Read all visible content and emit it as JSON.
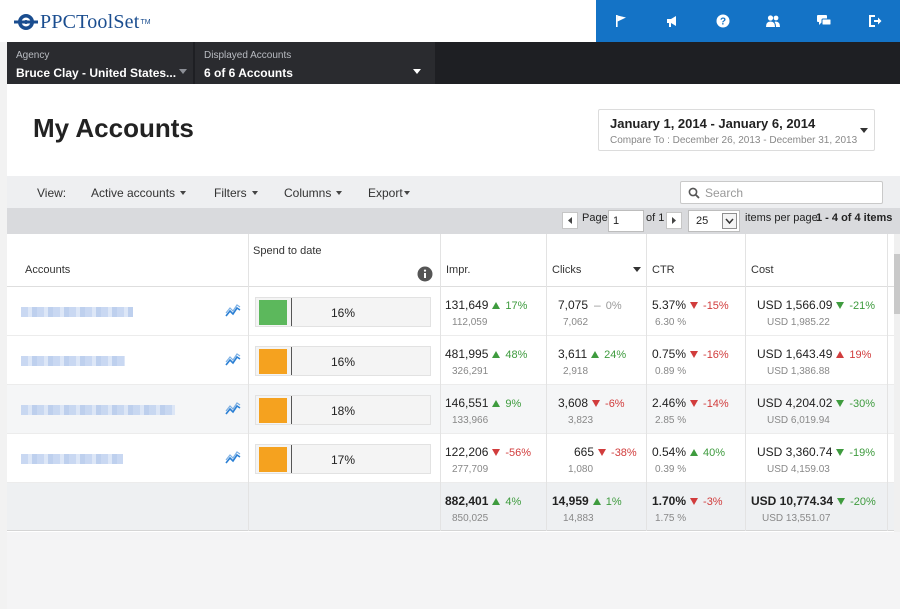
{
  "app": {
    "logo_text": "PPCToolSet",
    "logo_tm": "TM"
  },
  "topnav": {
    "icons": [
      "flag-icon",
      "megaphone-icon",
      "help-icon",
      "users-icon",
      "chat-icon",
      "logout-icon"
    ]
  },
  "agency": {
    "label": "Agency",
    "value": "Bruce Clay - United States..."
  },
  "displayed_accounts": {
    "label": "Displayed Accounts",
    "value": "6 of 6 Accounts"
  },
  "page": {
    "title": "My Accounts"
  },
  "date_range": {
    "main": "January 1, 2014 - January 6, 2014",
    "compare": "Compare To : December 26, 2013 - December 31, 2013"
  },
  "toolbar": {
    "view_label": "View:",
    "active_accounts": "Active accounts",
    "filters": "Filters",
    "columns": "Columns",
    "export": "Export",
    "search_placeholder": "Search"
  },
  "pager": {
    "page_label": "Page",
    "page_value": "1",
    "of_label": "of 1",
    "per_page_value": "25",
    "per_page_label": "items per page",
    "range": "1 - 4 of 4 items"
  },
  "columns": {
    "accounts": "Accounts",
    "spend": "Spend to date",
    "impr": "Impr.",
    "clicks": "Clicks",
    "ctr": "CTR",
    "cost": "Cost"
  },
  "rows": [
    {
      "spend": {
        "pct": "16%",
        "fraction": 0.16,
        "color": "#5cb85c"
      },
      "impr": {
        "value": "131,649",
        "dir": "up",
        "change": "17%",
        "prev": "112,059"
      },
      "clicks": {
        "value": "7,075",
        "dir": "flat",
        "change": "0%",
        "prev": "7,062"
      },
      "ctr": {
        "value": "5.37%",
        "dir": "down",
        "change": "-15%",
        "prev": "6.30 %"
      },
      "cost": {
        "value": "USD 1,566.09",
        "dir": "down-good",
        "change": "-21%",
        "prev": "USD 1,985.22"
      }
    },
    {
      "spend": {
        "pct": "16%",
        "fraction": 0.16,
        "color": "#f5a21f"
      },
      "impr": {
        "value": "481,995",
        "dir": "up",
        "change": "48%",
        "prev": "326,291"
      },
      "clicks": {
        "value": "3,611",
        "dir": "up",
        "change": "24%",
        "prev": "2,918"
      },
      "ctr": {
        "value": "0.75%",
        "dir": "down",
        "change": "-16%",
        "prev": "0.89 %"
      },
      "cost": {
        "value": "USD 1,643.49",
        "dir": "up-bad",
        "change": "19%",
        "prev": "USD 1,386.88"
      }
    },
    {
      "spend": {
        "pct": "18%",
        "fraction": 0.18,
        "color": "#f5a21f"
      },
      "impr": {
        "value": "146,551",
        "dir": "up",
        "change": "9%",
        "prev": "133,966"
      },
      "clicks": {
        "value": "3,608",
        "dir": "down",
        "change": "-6%",
        "prev": "3,823"
      },
      "ctr": {
        "value": "2.46%",
        "dir": "down",
        "change": "-14%",
        "prev": "2.85 %"
      },
      "cost": {
        "value": "USD 4,204.02",
        "dir": "down-good",
        "change": "-30%",
        "prev": "USD 6,019.94"
      }
    },
    {
      "spend": {
        "pct": "17%",
        "fraction": 0.17,
        "color": "#f5a21f"
      },
      "impr": {
        "value": "122,206",
        "dir": "down",
        "change": "-56%",
        "prev": "277,709"
      },
      "clicks": {
        "value": "665",
        "dir": "down",
        "change": "-38%",
        "prev": "1,080"
      },
      "ctr": {
        "value": "0.54%",
        "dir": "up",
        "change": "40%",
        "prev": "0.39 %"
      },
      "cost": {
        "value": "USD 3,360.74",
        "dir": "down-good",
        "change": "-19%",
        "prev": "USD 4,159.03"
      }
    }
  ],
  "totals": {
    "impr": {
      "value": "882,401",
      "dir": "up",
      "change": "4%",
      "prev": "850,025"
    },
    "clicks": {
      "value": "14,959",
      "dir": "up",
      "change": "1%",
      "prev": "14,883"
    },
    "ctr": {
      "value": "1.70%",
      "dir": "down",
      "change": "-3%",
      "prev": "1.75 %"
    },
    "cost": {
      "value": "USD 10,774.34",
      "dir": "down-good",
      "change": "-20%",
      "prev": "USD 13,551.07"
    }
  },
  "colors": {
    "brand_blue": "#1473c6",
    "dark_bar": "#1e1f23",
    "up_green": "#3e9b3e",
    "down_red": "#d13c3c"
  }
}
